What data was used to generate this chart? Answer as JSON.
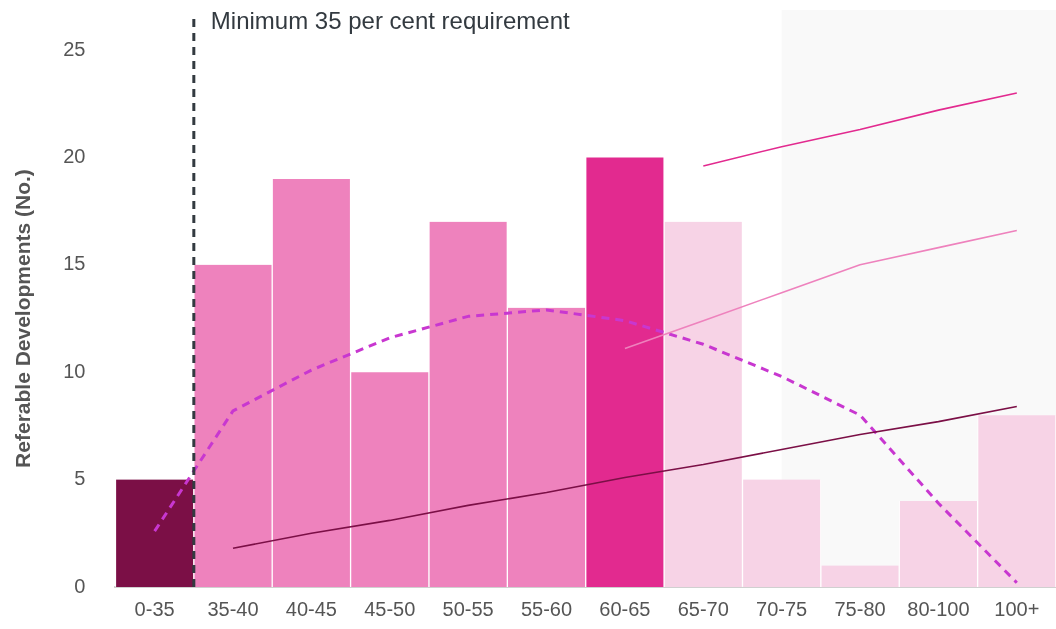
{
  "chart_data": {
    "type": "bar",
    "ylabel": "Referable Developments (No.)",
    "categories": [
      "0-35",
      "35-40",
      "40-45",
      "45-50",
      "50-55",
      "55-60",
      "60-65",
      "65-70",
      "70-75",
      "75-80",
      "80-100",
      "100+"
    ],
    "series": [
      {
        "values": [
          5,
          15,
          19,
          10,
          17,
          13,
          20,
          17,
          5,
          1,
          4,
          8
        ],
        "colors": [
          "#7b0f46",
          "#ee82bd",
          "#ee82bd",
          "#ee82bd",
          "#ee82bd",
          "#ee82bd",
          "#e22a8f",
          "#f7d3e6",
          "#f7d3e6",
          "#f7d3e6",
          "#f7d3e6",
          "#f7d3e6"
        ]
      },
      {
        "type": "line",
        "color": "#e22a8f",
        "line_style": "solid",
        "values": [
          null,
          null,
          null,
          null,
          null,
          null,
          null,
          19.6,
          20.5,
          21.3,
          22.2,
          23.0
        ]
      },
      {
        "type": "line",
        "color": "#ee82bd",
        "line_style": "solid",
        "values": [
          null,
          null,
          null,
          null,
          null,
          null,
          11.1,
          12.4,
          13.7,
          15.0,
          15.8,
          16.6
        ]
      },
      {
        "type": "line",
        "color": "#7b0f46",
        "line_style": "solid",
        "values": [
          null,
          1.8,
          2.5,
          3.1,
          3.8,
          4.4,
          5.1,
          5.7,
          6.4,
          7.1,
          7.7,
          8.4
        ]
      },
      {
        "type": "line",
        "color": "#c837d0",
        "line_style": "dashed",
        "values": [
          2.6,
          8.2,
          10.1,
          11.6,
          12.6,
          12.9,
          12.4,
          11.3,
          9.8,
          8.0,
          3.9,
          0.2
        ]
      }
    ],
    "ylim": [
      0,
      25
    ],
    "yticks": [
      0,
      5,
      10,
      15,
      20,
      25
    ],
    "grid": false,
    "legend": false,
    "marker": "none",
    "annotations": [
      "Minimum 35 per cent requirement"
    ],
    "bands": [
      {
        "axis": "x",
        "from": "70-75",
        "to": "100+",
        "color": "#f9f9f9"
      }
    ]
  }
}
